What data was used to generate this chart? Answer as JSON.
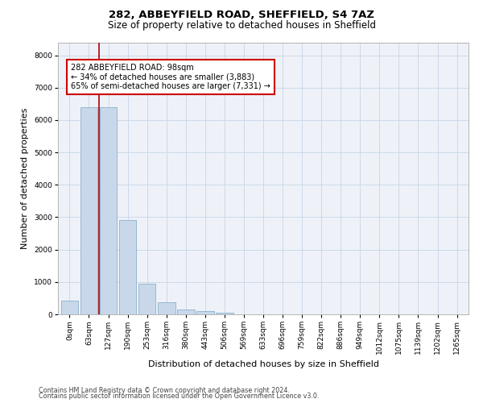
{
  "title_line1": "282, ABBEYFIELD ROAD, SHEFFIELD, S4 7AZ",
  "title_line2": "Size of property relative to detached houses in Sheffield",
  "xlabel": "Distribution of detached houses by size in Sheffield",
  "ylabel": "Number of detached properties",
  "categories": [
    "0sqm",
    "63sqm",
    "127sqm",
    "190sqm",
    "253sqm",
    "316sqm",
    "380sqm",
    "443sqm",
    "506sqm",
    "569sqm",
    "633sqm",
    "696sqm",
    "759sqm",
    "822sqm",
    "886sqm",
    "949sqm",
    "1012sqm",
    "1075sqm",
    "1139sqm",
    "1202sqm",
    "1265sqm"
  ],
  "bar_values": [
    430,
    6400,
    6400,
    2900,
    950,
    380,
    150,
    95,
    55,
    0,
    0,
    0,
    0,
    0,
    0,
    0,
    0,
    0,
    0,
    0,
    0
  ],
  "bar_color": "#c8d8ea",
  "bar_edge_color": "#8ab0cc",
  "grid_color": "#ccd8e8",
  "background_color": "#eef2f8",
  "vline_x": 1.5,
  "vline_color": "#aa0000",
  "annotation_text": "282 ABBEYFIELD ROAD: 98sqm\n← 34% of detached houses are smaller (3,883)\n65% of semi-detached houses are larger (7,331) →",
  "annotation_box_color": "#cc0000",
  "ylim": [
    0,
    8400
  ],
  "yticks": [
    0,
    1000,
    2000,
    3000,
    4000,
    5000,
    6000,
    7000,
    8000
  ],
  "footer_line1": "Contains HM Land Registry data © Crown copyright and database right 2024.",
  "footer_line2": "Contains public sector information licensed under the Open Government Licence v3.0.",
  "title_fontsize": 9.5,
  "subtitle_fontsize": 8.5,
  "tick_fontsize": 6.5,
  "ylabel_fontsize": 8,
  "xlabel_fontsize": 8,
  "footer_fontsize": 5.8,
  "annot_fontsize": 7.0
}
